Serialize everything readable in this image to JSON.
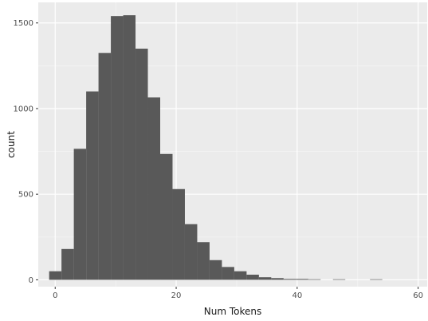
{
  "chart_data": {
    "type": "bar",
    "subtype": "histogram",
    "title": "",
    "xlabel": "Num Tokens",
    "ylabel": "count",
    "xlim": [
      -2.8,
      61.5
    ],
    "ylim": [
      -40,
      1620
    ],
    "x_ticks": [
      0,
      20,
      40,
      60
    ],
    "y_ticks": [
      0,
      500,
      1000,
      1500
    ],
    "bin_width": 2.04,
    "bin_start": -1.0,
    "values": [
      50,
      180,
      765,
      1100,
      1325,
      1540,
      1545,
      1350,
      1065,
      735,
      530,
      325,
      220,
      115,
      75,
      50,
      30,
      15,
      10,
      5,
      5,
      3,
      0,
      3,
      0,
      0,
      3,
      0,
      0,
      0
    ],
    "grid": true,
    "legend": "none",
    "colors": {
      "bar": "#595959",
      "panel": "#ebebeb",
      "grid_major": "#ffffff",
      "grid_minor": "#f4f4f4"
    }
  }
}
